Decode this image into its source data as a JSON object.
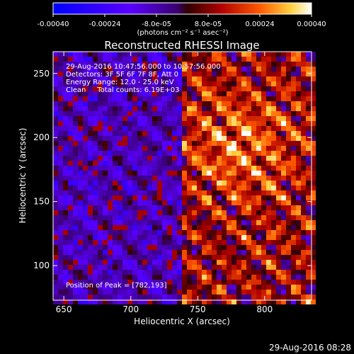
{
  "colorbar": {
    "tick_labels": [
      "-0.00040",
      "-0.00024",
      "-8.0e-05",
      "8.0e-05",
      "0.00024",
      "0.00040"
    ],
    "unit_label": "(photons cm⁻² s⁻¹ asec⁻²)",
    "range": [
      -0.0004,
      0.0004
    ]
  },
  "chart_data": {
    "type": "heatmap",
    "title": "Reconstructed RHESSI Image",
    "xlabel": "Heliocentric X (arcsec)",
    "ylabel": "Heliocentric Y (arcsec)",
    "xlim": [
      642,
      835
    ],
    "ylim": [
      73,
      267
    ],
    "x_ticks": [
      650,
      700,
      750,
      800
    ],
    "y_ticks": [
      100,
      150,
      200,
      250
    ],
    "annotations": [
      "29-Aug-2016 10:47:56.000 to 10:57:56.000",
      "Detectors: 3F 5F 6F 7F 8F, Att 0",
      "Energy Range: 12.0 - 25.0 keV",
      "Clean     Total counts: 6.19E+03"
    ],
    "peak_label": "Position of Peak = [782,193]",
    "peak": [
      782,
      193
    ]
  },
  "footer": {
    "timestamp": "29-Aug-2016 08:28"
  },
  "colors": {
    "background": "#000000",
    "text": "#ffffff"
  }
}
